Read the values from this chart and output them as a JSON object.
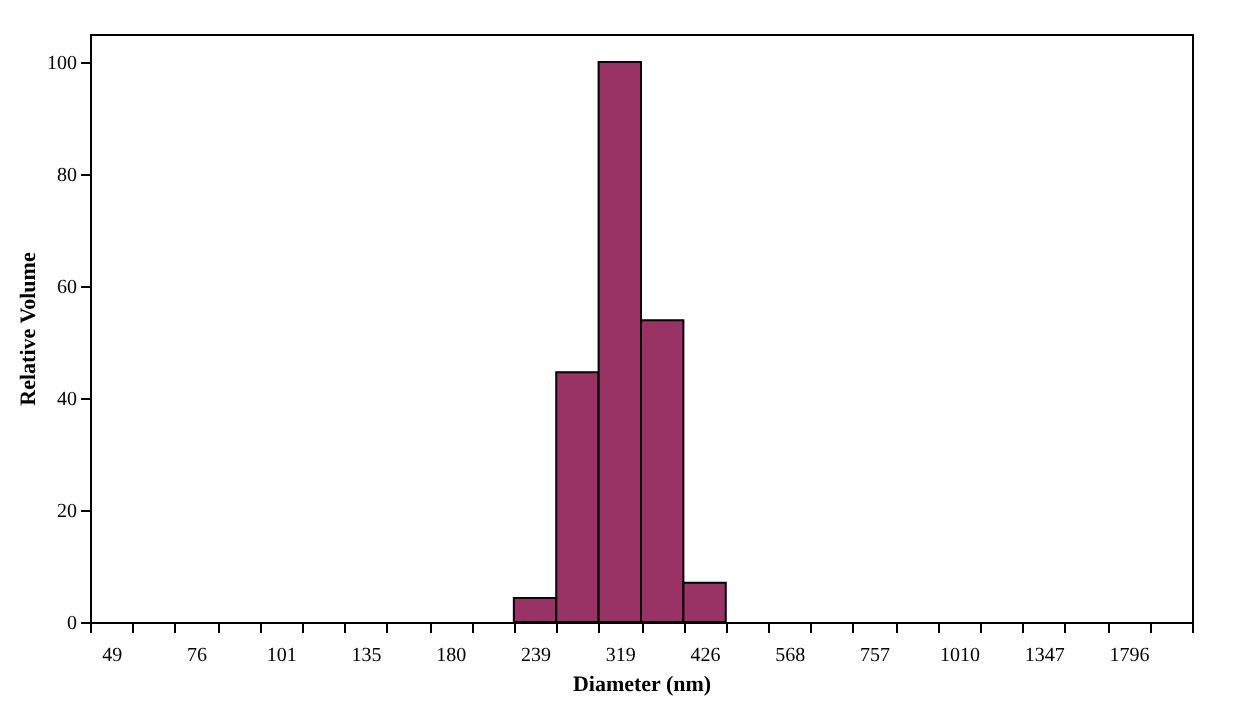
{
  "chart_data": {
    "type": "bar",
    "xlabel": "Diameter (nm)",
    "ylabel": "Relative Volume",
    "categories": [
      "49",
      null,
      "76",
      null,
      "101",
      null,
      "135",
      null,
      "180",
      null,
      "239",
      null,
      "319",
      null,
      "426",
      null,
      "568",
      null,
      "757",
      null,
      "1010",
      null,
      "1347",
      null,
      "1796",
      null
    ],
    "values": [
      0,
      0,
      0,
      0,
      0,
      0,
      0,
      0,
      0,
      0,
      4.3,
      44.6,
      100,
      53.9,
      7,
      0,
      0,
      0,
      0,
      0,
      0,
      0,
      0,
      0,
      0,
      0
    ],
    "color": "#993366",
    "ylim": [
      0,
      105
    ],
    "yticks": [
      0,
      20,
      40,
      60,
      80,
      100
    ],
    "grid": false
  }
}
